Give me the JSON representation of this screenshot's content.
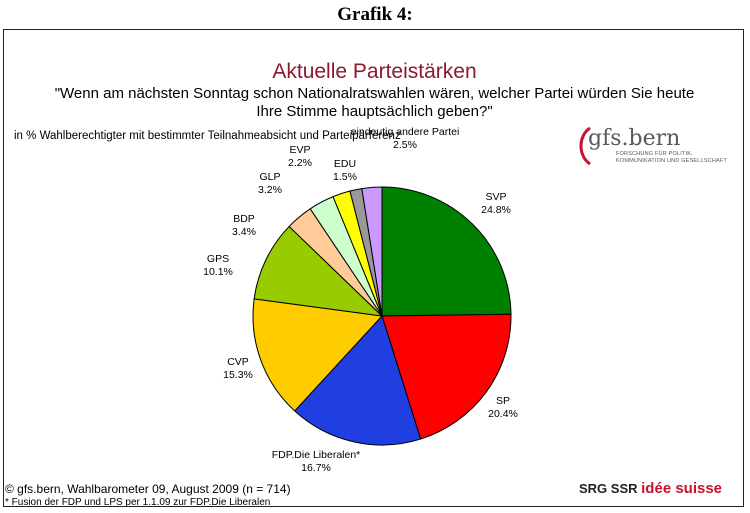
{
  "header": {
    "grafik": "Grafik 4:"
  },
  "chart_data": {
    "type": "pie",
    "title": "Aktuelle Parteistärken",
    "subtitle": "\"Wenn am nächsten Sonntag schon Nationalratswahlen wären, welcher Partei würden Sie heute Ihre Stimme hauptsächlich geben?\"",
    "note": "in % Wahlberechtigter mit bestimmter Teilnahmeabsicht und Parteipärferenz",
    "slices": [
      {
        "name": "SVP",
        "value": 24.8,
        "label": "24.8%",
        "color": "#008000"
      },
      {
        "name": "SP",
        "value": 20.4,
        "label": "20.4%",
        "color": "#ff0000"
      },
      {
        "name": "FDP.Die Liberalen*",
        "value": 16.7,
        "label": "16.7%",
        "color": "#1f3fe0"
      },
      {
        "name": "CVP",
        "value": 15.3,
        "label": "15.3%",
        "color": "#ffcc00"
      },
      {
        "name": "GPS",
        "value": 10.1,
        "label": "10.1%",
        "color": "#99cc00"
      },
      {
        "name": "BDP",
        "value": 3.4,
        "label": "3.4%",
        "color": "#ffcc99"
      },
      {
        "name": "GLP",
        "value": 3.2,
        "label": "3.2%",
        "color": "#ccffcc"
      },
      {
        "name": "EVP",
        "value": 2.2,
        "label": "2.2%",
        "color": "#ffff00"
      },
      {
        "name": "EDU",
        "value": 1.5,
        "label": "1.5%",
        "color": "#999999"
      },
      {
        "name": "eindeutig andere Partei",
        "value": 2.5,
        "label": "2.5%",
        "color": "#cc99ff"
      }
    ]
  },
  "logo": {
    "name": "gfs.bern",
    "sub1": "FORSCHUNG FÜR POLITIK,",
    "sub2": "KOMMUNIKATION UND GESELLSCHAFT"
  },
  "sponsor": {
    "srg": "SRG SSR",
    "idee": "idée suisse"
  },
  "footer": {
    "source": "© gfs.bern, Wahlbarometer 09, August 2009 (n = 714)",
    "footnote": "* Fusion der FDP und LPS per 1.1.09 zur FDP.Die Liberalen"
  }
}
